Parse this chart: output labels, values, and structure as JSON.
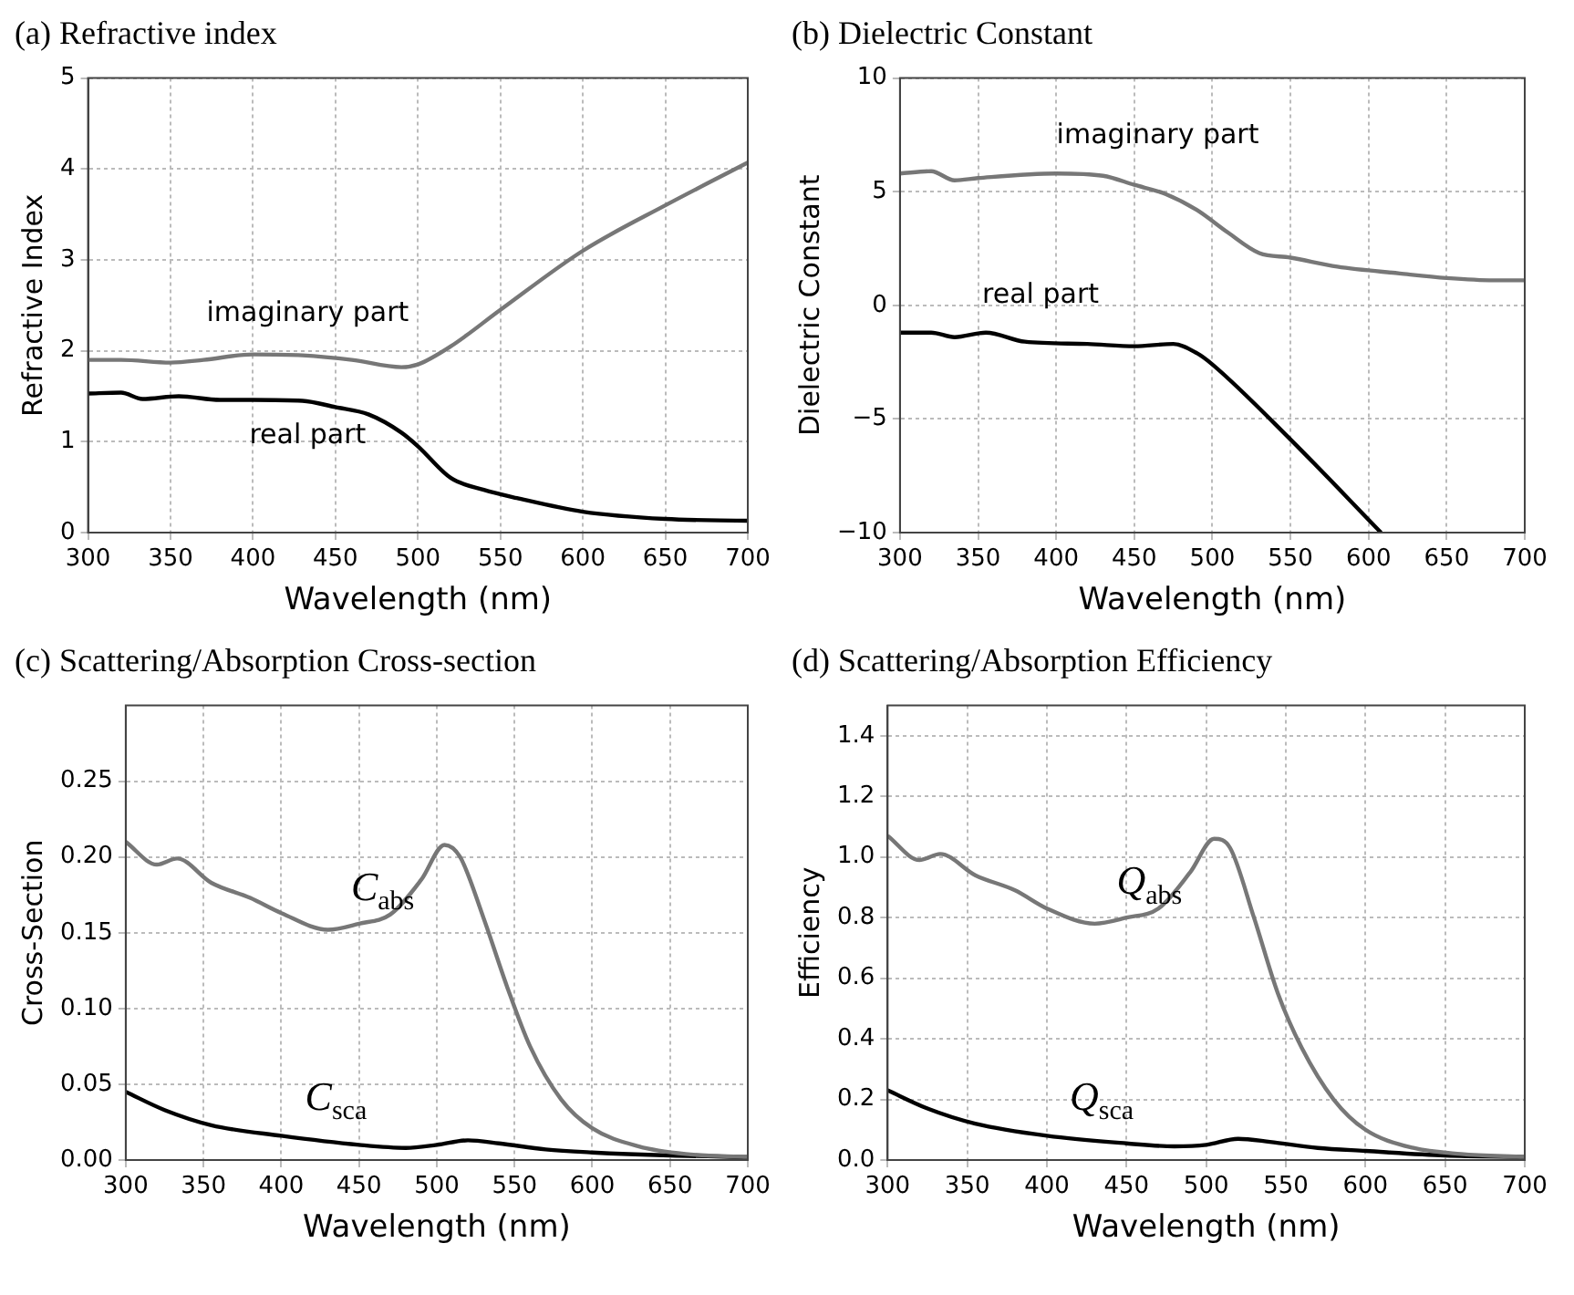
{
  "chart_data": [
    {
      "type": "line",
      "title": "(a) Refractive index",
      "xlabel": "Wavelength (nm)",
      "ylabel": "Refractive Index",
      "xlim": [
        300,
        700
      ],
      "xticks": [
        300,
        350,
        400,
        450,
        500,
        550,
        600,
        650,
        700
      ],
      "ylim": [
        0,
        5
      ],
      "yticks": [
        0,
        1,
        2,
        3,
        4,
        5
      ],
      "grid": true,
      "marker": "none",
      "line_style": "solid",
      "series": [
        {
          "name": "imaginary part",
          "color": "#777777",
          "x": [
            300,
            320,
            350,
            370,
            400,
            430,
            460,
            490,
            500,
            520,
            550,
            600,
            650,
            700
          ],
          "values": [
            1.9,
            1.9,
            1.87,
            1.9,
            1.96,
            1.95,
            1.9,
            1.82,
            1.85,
            2.05,
            2.45,
            3.1,
            3.6,
            4.07
          ]
        },
        {
          "name": "real part",
          "color": "#000000",
          "x": [
            300,
            320,
            333,
            355,
            380,
            400,
            430,
            450,
            470,
            490,
            500,
            520,
            540,
            560,
            600,
            650,
            700
          ],
          "values": [
            1.53,
            1.54,
            1.47,
            1.5,
            1.46,
            1.46,
            1.45,
            1.38,
            1.3,
            1.1,
            0.95,
            0.6,
            0.47,
            0.38,
            0.23,
            0.15,
            0.13
          ]
        }
      ]
    },
    {
      "type": "line",
      "title": "(b) Dielectric Constant",
      "xlabel": "Wavelength (nm)",
      "ylabel": "Dielectric Constant",
      "xlim": [
        300,
        700
      ],
      "xticks": [
        300,
        350,
        400,
        450,
        500,
        550,
        600,
        650,
        700
      ],
      "ylim": [
        -10,
        10
      ],
      "yticks": [
        {
          "value": -10,
          "label": "−10"
        },
        {
          "value": -5,
          "label": "−5"
        },
        0,
        5,
        10
      ],
      "grid": true,
      "marker": "none",
      "line_style": "solid",
      "series": [
        {
          "name": "imaginary part",
          "color": "#777777",
          "x": [
            300,
            320,
            335,
            350,
            400,
            430,
            450,
            470,
            490,
            510,
            530,
            550,
            580,
            620,
            650,
            680,
            700
          ],
          "values": [
            5.8,
            5.9,
            5.5,
            5.6,
            5.8,
            5.7,
            5.3,
            4.9,
            4.2,
            3.2,
            2.3,
            2.1,
            1.7,
            1.4,
            1.2,
            1.1,
            1.1
          ]
        },
        {
          "name": "real part",
          "color": "#000000",
          "x": [
            300,
            320,
            335,
            355,
            380,
            420,
            450,
            475,
            490,
            500,
            550,
            608
          ],
          "values": [
            -1.2,
            -1.2,
            -1.4,
            -1.2,
            -1.6,
            -1.7,
            -1.8,
            -1.7,
            -2.1,
            -2.6,
            -5.9,
            -10
          ]
        }
      ]
    },
    {
      "type": "line",
      "title": "(c) Scattering/Absorption Cross-section",
      "xlabel": "Wavelength (nm)",
      "ylabel": "Cross-Section",
      "xlim": [
        300,
        700
      ],
      "xticks": [
        300,
        350,
        400,
        450,
        500,
        550,
        600,
        650,
        700
      ],
      "ylim": [
        0,
        0.3
      ],
      "yticks": [
        {
          "value": 0,
          "label": "0.00"
        },
        {
          "value": 0.05,
          "label": "0.05"
        },
        {
          "value": 0.1,
          "label": "0.10"
        },
        {
          "value": 0.15,
          "label": "0.15"
        },
        {
          "value": 0.2,
          "label": "0.20"
        },
        {
          "value": 0.25,
          "label": "0.25"
        }
      ],
      "grid": true,
      "marker": "none",
      "line_style": "solid",
      "series": [
        {
          "name": "C$_{abs}$",
          "color": "#777777",
          "x": [
            300,
            320,
            333,
            355,
            380,
            400,
            430,
            450,
            470,
            490,
            505,
            515,
            530,
            545,
            560,
            580,
            600,
            630,
            660,
            700
          ],
          "values": [
            0.21,
            0.195,
            0.199,
            0.183,
            0.173,
            0.163,
            0.152,
            0.156,
            0.162,
            0.185,
            0.208,
            0.2,
            0.16,
            0.115,
            0.075,
            0.04,
            0.021,
            0.009,
            0.004,
            0.002
          ]
        },
        {
          "name": "C$_{sca}$",
          "color": "#000000",
          "x": [
            300,
            325,
            355,
            400,
            450,
            480,
            500,
            520,
            540,
            570,
            600,
            650,
            700
          ],
          "values": [
            0.045,
            0.033,
            0.023,
            0.016,
            0.01,
            0.008,
            0.01,
            0.013,
            0.011,
            0.007,
            0.005,
            0.003,
            0.002
          ]
        }
      ]
    },
    {
      "type": "line",
      "title": "(d) Scattering/Absorption Efficiency",
      "xlabel": "Wavelength (nm)",
      "ylabel": "Efficiency",
      "xlim": [
        300,
        700
      ],
      "xticks": [
        300,
        350,
        400,
        450,
        500,
        550,
        600,
        650,
        700
      ],
      "ylim": [
        0,
        1.5
      ],
      "yticks": [
        {
          "value": 0,
          "label": "0.0"
        },
        {
          "value": 0.2,
          "label": "0.2"
        },
        {
          "value": 0.4,
          "label": "0.4"
        },
        {
          "value": 0.6,
          "label": "0.6"
        },
        {
          "value": 0.8,
          "label": "0.8"
        },
        {
          "value": 1,
          "label": "1.0"
        },
        {
          "value": 1.2,
          "label": "1.2"
        },
        {
          "value": 1.4,
          "label": "1.4"
        }
      ],
      "grid": true,
      "marker": "none",
      "line_style": "solid",
      "series": [
        {
          "name": "Q$_{abs}$",
          "color": "#777777",
          "x": [
            300,
            320,
            333,
            355,
            380,
            400,
            430,
            450,
            470,
            490,
            505,
            515,
            530,
            545,
            560,
            580,
            600,
            630,
            660,
            700
          ],
          "values": [
            1.07,
            0.99,
            1.01,
            0.94,
            0.89,
            0.83,
            0.78,
            0.8,
            0.83,
            0.95,
            1.06,
            1.03,
            0.8,
            0.55,
            0.37,
            0.2,
            0.1,
            0.04,
            0.02,
            0.01
          ]
        },
        {
          "name": "Q$_{sca}$",
          "color": "#000000",
          "x": [
            300,
            325,
            355,
            400,
            450,
            480,
            500,
            520,
            540,
            570,
            600,
            650,
            700
          ],
          "values": [
            0.23,
            0.17,
            0.12,
            0.08,
            0.055,
            0.045,
            0.05,
            0.07,
            0.06,
            0.04,
            0.03,
            0.015,
            0.01
          ]
        }
      ]
    }
  ]
}
